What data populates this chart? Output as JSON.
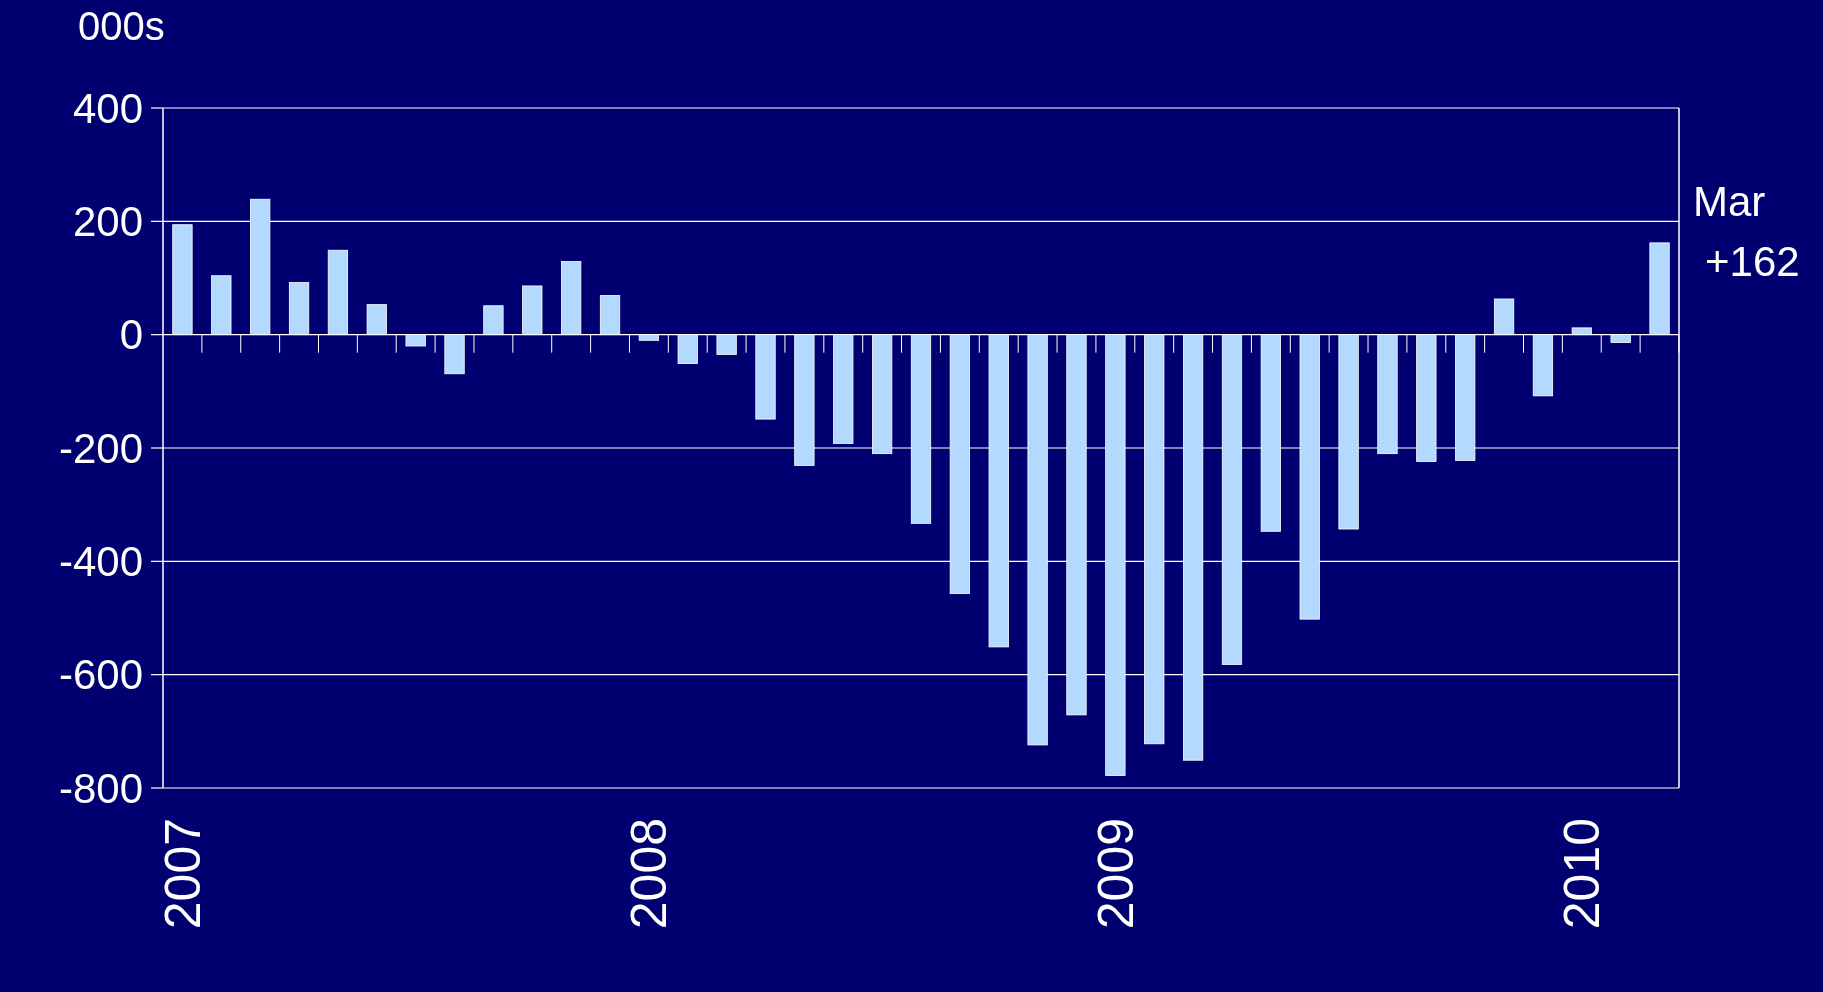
{
  "chart_data": {
    "type": "bar",
    "ylabel": "000s",
    "categories": [
      "2007",
      null,
      null,
      null,
      null,
      null,
      null,
      null,
      null,
      null,
      null,
      null,
      "2008",
      null,
      null,
      null,
      null,
      null,
      null,
      null,
      null,
      null,
      null,
      null,
      "2009",
      null,
      null,
      null,
      null,
      null,
      null,
      null,
      null,
      null,
      null,
      null,
      "2010",
      null,
      null
    ],
    "values": [
      194,
      104,
      239,
      92,
      149,
      53,
      -20,
      -69,
      51,
      86,
      129,
      69,
      -10,
      -51,
      -35,
      -149,
      -231,
      -192,
      -210,
      -333,
      -457,
      -551,
      -724,
      -671,
      -778,
      -722,
      -751,
      -582,
      -347,
      -502,
      -343,
      -210,
      -224,
      -222,
      63,
      -108,
      12,
      -14,
      162
    ],
    "annotations": [
      "Mar",
      "+162"
    ],
    "color": "#b3d9ff",
    "ylim": [
      -800,
      400
    ],
    "yticks": [
      -800,
      -600,
      -400,
      -200,
      0,
      200,
      400
    ],
    "grid": "y"
  }
}
